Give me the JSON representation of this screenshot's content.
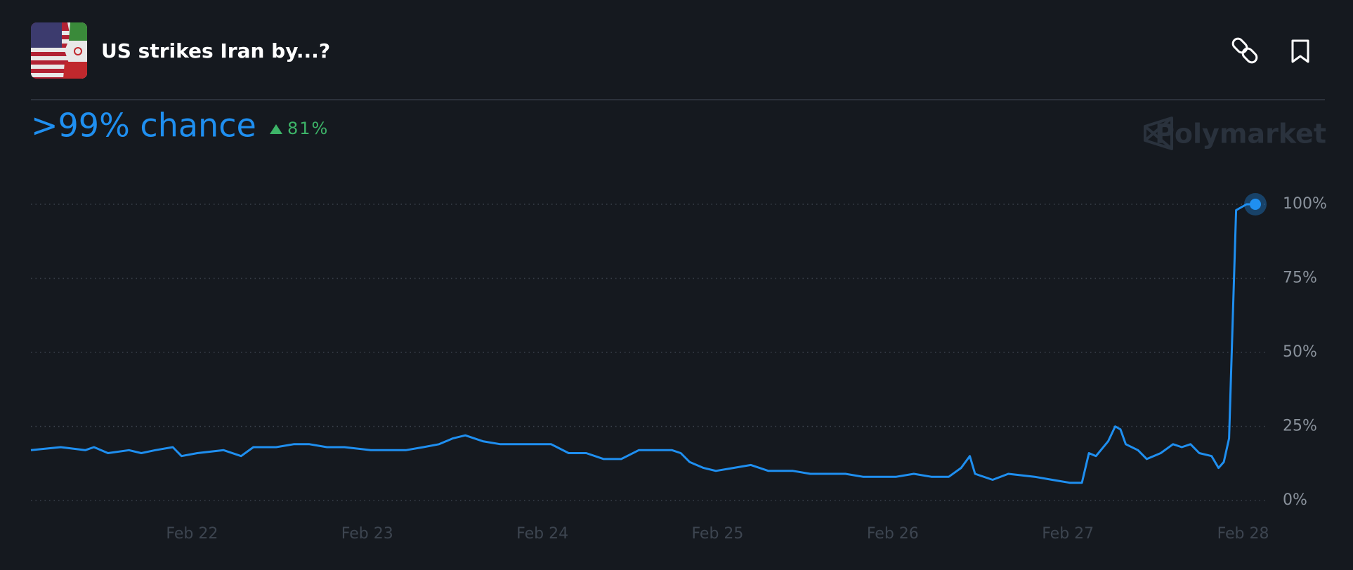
{
  "header": {
    "title": "US strikes Iran by...?",
    "headline": ">99% chance",
    "change": "81%",
    "brand": "Polymarket"
  },
  "chart_data": {
    "type": "line",
    "color": "#1f8ff0",
    "grid": true,
    "x": [
      21.08,
      21.25,
      21.39,
      21.44,
      21.52,
      21.64,
      21.71,
      21.79,
      21.89,
      21.94,
      22.03,
      22.18,
      22.28,
      22.35,
      22.48,
      22.58,
      22.67,
      22.77,
      22.87,
      23.02,
      23.22,
      23.32,
      23.41,
      23.49,
      23.56,
      23.66,
      23.76,
      24.05,
      24.15,
      24.25,
      24.35,
      24.45,
      24.55,
      24.65,
      24.74,
      24.79,
      24.84,
      24.92,
      24.99,
      25.09,
      25.19,
      25.29,
      25.43,
      25.53,
      25.73,
      25.83,
      26.02,
      26.12,
      26.22,
      26.32,
      26.39,
      26.44,
      26.47,
      26.57,
      26.66,
      26.81,
      26.91,
      27.01,
      27.08,
      27.12,
      27.16,
      27.23,
      27.27,
      27.3,
      27.33,
      27.4,
      27.45,
      27.53,
      27.6,
      27.65,
      27.7,
      27.75,
      27.82,
      27.86,
      27.89,
      27.92,
      27.96,
      28.02,
      28.07
    ],
    "values": [
      17,
      18,
      17,
      18,
      16,
      17,
      16,
      17,
      18,
      15,
      16,
      17,
      15,
      18,
      18,
      19,
      19,
      18,
      18,
      17,
      17,
      18,
      19,
      21,
      22,
      20,
      19,
      19,
      16,
      16,
      14,
      14,
      17,
      17,
      17,
      16,
      13,
      11,
      10,
      11,
      12,
      10,
      10,
      9,
      9,
      8,
      8,
      9,
      8,
      8,
      11,
      15,
      9,
      7,
      9,
      8,
      7,
      6,
      6,
      16,
      15,
      20,
      25,
      24,
      19,
      17,
      14,
      16,
      19,
      18,
      19,
      16,
      15,
      11,
      13,
      21,
      98,
      100,
      100
    ],
    "xlim": [
      21.08,
      28.07
    ],
    "xticks": [
      {
        "value": 22,
        "label": "Feb 22"
      },
      {
        "value": 23,
        "label": "Feb 23"
      },
      {
        "value": 24,
        "label": "Feb 24"
      },
      {
        "value": 25,
        "label": "Feb 25"
      },
      {
        "value": 26,
        "label": "Feb 26"
      },
      {
        "value": 27,
        "label": "Feb 27"
      },
      {
        "value": 28,
        "label": "Feb 28"
      }
    ],
    "ylim": [
      0,
      100
    ],
    "yticks": [
      {
        "value": 0,
        "label": "0%"
      },
      {
        "value": 25,
        "label": "25%"
      },
      {
        "value": 50,
        "label": "50%"
      },
      {
        "value": 75,
        "label": "75%"
      },
      {
        "value": 100,
        "label": "100%"
      }
    ]
  }
}
